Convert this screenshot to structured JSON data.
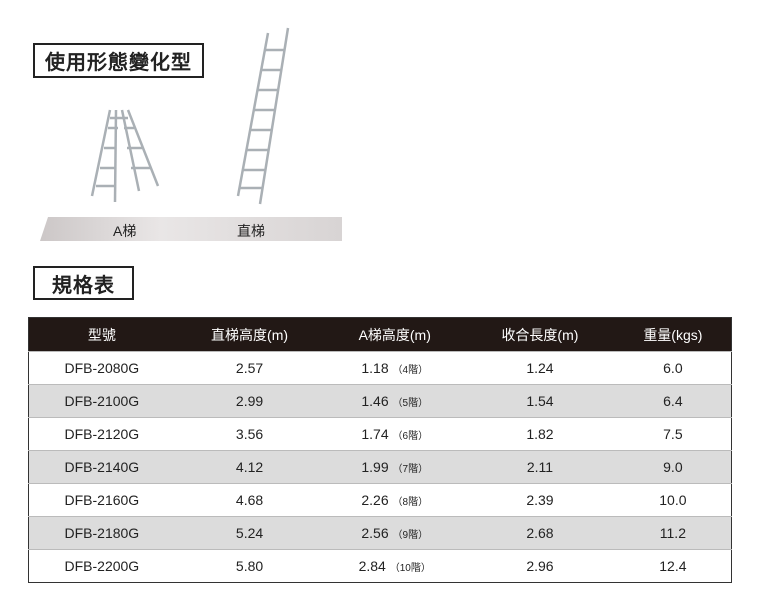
{
  "usage_section": {
    "title": "使用形態變化型",
    "labels": [
      "A梯",
      "直梯"
    ]
  },
  "spec_section": {
    "title": "規格表"
  },
  "table": {
    "headers": [
      "型號",
      "直梯高度(m)",
      "A梯高度(m)",
      "收合長度(m)",
      "重量(kgs)"
    ],
    "rows": [
      [
        "DFB-2080G",
        "2.57",
        "1.18",
        "（4階）",
        "1.24",
        "6.0"
      ],
      [
        "DFB-2100G",
        "2.99",
        "1.46",
        "（5階）",
        "1.54",
        "6.4"
      ],
      [
        "DFB-2120G",
        "3.56",
        "1.74",
        "（6階）",
        "1.82",
        "7.5"
      ],
      [
        "DFB-2140G",
        "4.12",
        "1.99",
        "（7階）",
        "2.11",
        "9.0"
      ],
      [
        "DFB-2160G",
        "4.68",
        "2.26",
        "（8階）",
        "2.39",
        "10.0"
      ],
      [
        "DFB-2180G",
        "5.24",
        "2.56",
        "（9階）",
        "2.68",
        "11.2"
      ],
      [
        "DFB-2200G",
        "5.80",
        "2.84",
        "（10階）",
        "2.96",
        "12.4"
      ]
    ]
  },
  "colors": {
    "header_bg": "#221815",
    "alt_row": "#dcdcdc"
  }
}
